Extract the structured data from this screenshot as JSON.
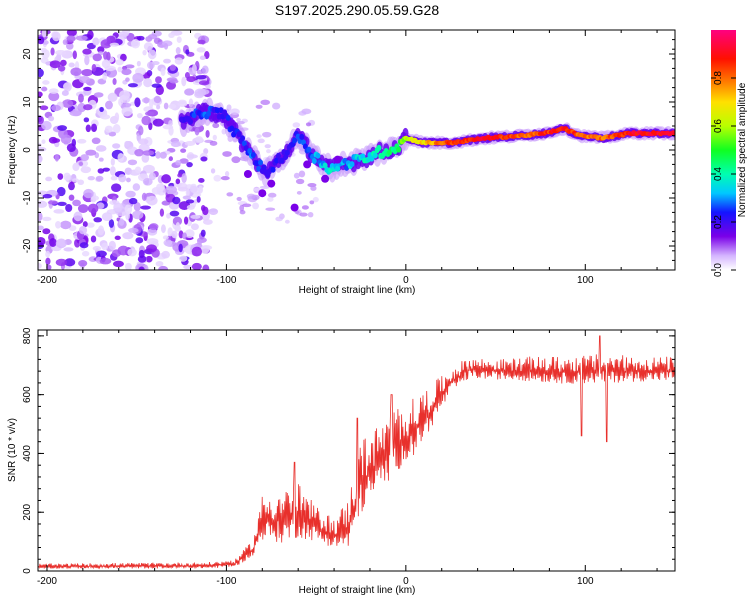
{
  "title": "S197.2025.290.05.59.G28",
  "chart_data": [
    {
      "type": "heatmap",
      "xlabel": "Height of straight line (km)",
      "ylabel": "Frequency (Hz)",
      "xlim": [
        -205,
        150
      ],
      "ylim": [
        -25,
        25
      ],
      "xticks": [
        -200,
        -100,
        0,
        100
      ],
      "xtick_labels": [
        "-200",
        "-100",
        "0",
        "100"
      ],
      "yticks": [
        -20,
        -10,
        0,
        10,
        20
      ],
      "ytick_labels": [
        "-20",
        "-10",
        "0",
        "10",
        "20"
      ],
      "colorbar": {
        "label": "Normalized spectral amplitude",
        "range": [
          0,
          1
        ],
        "ticks": [
          0.0,
          0.2,
          0.4,
          0.6,
          0.8
        ],
        "tick_labels": [
          "0.0",
          "0.2",
          "0.4",
          "0.6",
          "0.8"
        ]
      },
      "ridge": [
        {
          "x": -125,
          "y": 5.5,
          "a": 0.2
        },
        {
          "x": -112,
          "y": 8.0,
          "a": 0.25
        },
        {
          "x": -102,
          "y": 7.5,
          "a": 0.22
        },
        {
          "x": -92,
          "y": 2.0,
          "a": 0.25
        },
        {
          "x": -85,
          "y": -1.5,
          "a": 0.25
        },
        {
          "x": -78,
          "y": -5.0,
          "a": 0.2
        },
        {
          "x": -68,
          "y": -1.0,
          "a": 0.2
        },
        {
          "x": -60,
          "y": 3.0,
          "a": 0.25
        },
        {
          "x": -52,
          "y": -1.0,
          "a": 0.3
        },
        {
          "x": -42,
          "y": -4.0,
          "a": 0.35
        },
        {
          "x": -35,
          "y": -3.0,
          "a": 0.3
        },
        {
          "x": -25,
          "y": -2.0,
          "a": 0.35
        },
        {
          "x": -15,
          "y": -0.5,
          "a": 0.4
        },
        {
          "x": -5,
          "y": 0.5,
          "a": 0.45
        },
        {
          "x": 0,
          "y": 2.5,
          "a": 0.6
        },
        {
          "x": 10,
          "y": 1.5,
          "a": 0.7
        },
        {
          "x": 25,
          "y": 1.5,
          "a": 0.85
        },
        {
          "x": 45,
          "y": 2.5,
          "a": 0.9
        },
        {
          "x": 65,
          "y": 3.0,
          "a": 0.8
        },
        {
          "x": 78,
          "y": 3.5,
          "a": 0.85
        },
        {
          "x": 88,
          "y": 4.5,
          "a": 0.9
        },
        {
          "x": 97,
          "y": 3.0,
          "a": 0.8
        },
        {
          "x": 110,
          "y": 2.5,
          "a": 0.8
        },
        {
          "x": 125,
          "y": 3.5,
          "a": 0.9
        },
        {
          "x": 150,
          "y": 3.5,
          "a": 0.9
        }
      ]
    },
    {
      "type": "line",
      "xlabel": "Height of straight line (km)",
      "ylabel": "SNR (10 * v/v)",
      "xlim": [
        -205,
        150
      ],
      "ylim": [
        0,
        820
      ],
      "xticks": [
        -200,
        -100,
        0,
        100
      ],
      "xtick_labels": [
        "-200",
        "-100",
        "0",
        "100"
      ],
      "yticks": [
        0,
        200,
        400,
        600,
        800
      ],
      "ytick_labels": [
        "0",
        "200",
        "400",
        "600",
        "800"
      ],
      "series": [
        {
          "name": "SNR",
          "color": "#e8302c",
          "envelope_x": [
            -205,
            -110,
            -95,
            -85,
            -80,
            -70,
            -60,
            -50,
            -40,
            -32,
            -25,
            -15,
            -5,
            5,
            15,
            25,
            35,
            50,
            70,
            90,
            110,
            130,
            150
          ],
          "envelope_lo": [
            5,
            5,
            10,
            40,
            80,
            60,
            80,
            80,
            60,
            40,
            150,
            230,
            300,
            360,
            470,
            590,
            640,
            640,
            630,
            620,
            620,
            630,
            630
          ],
          "envelope_hi": [
            25,
            30,
            40,
            110,
            260,
            280,
            300,
            220,
            180,
            250,
            450,
            500,
            560,
            590,
            640,
            690,
            730,
            720,
            730,
            730,
            740,
            730,
            730
          ],
          "spikes": [
            {
              "x": -62,
              "y": 370
            },
            {
              "x": -27,
              "y": 520
            },
            {
              "x": -8,
              "y": 600
            },
            {
              "x": 98,
              "y": 460
            },
            {
              "x": 108,
              "y": 800
            },
            {
              "x": 112,
              "y": 440
            }
          ]
        }
      ]
    }
  ]
}
